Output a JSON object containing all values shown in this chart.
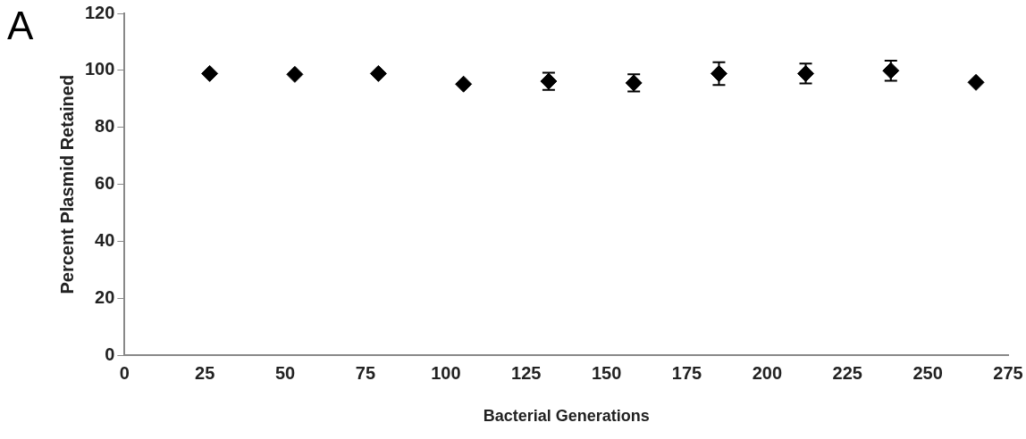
{
  "chart_data": {
    "type": "scatter",
    "xlabel": "Bacterial Generations",
    "ylabel": "Percent Plasmid Retained",
    "annotations": [
      "A"
    ],
    "x": [
      26.5,
      53,
      79,
      105.5,
      132,
      158.5,
      185,
      212,
      238.5,
      265
    ],
    "values": [
      98.9,
      98.6,
      98.9,
      95.2,
      96.2,
      95.6,
      98.9,
      98.9,
      99.9,
      95.8
    ],
    "errors": [
      null,
      null,
      null,
      null,
      3,
      3,
      4,
      3.5,
      3.5,
      null
    ],
    "color": "#000000",
    "marker": "diamond",
    "xlim": [
      0,
      275
    ],
    "xticks": [
      0,
      25,
      50,
      75,
      100,
      125,
      150,
      175,
      200,
      225,
      250,
      275
    ],
    "ylim": [
      0,
      120
    ],
    "yticks": [
      0,
      20,
      40,
      60,
      80,
      100,
      120
    ],
    "grid": false,
    "legend": false
  }
}
